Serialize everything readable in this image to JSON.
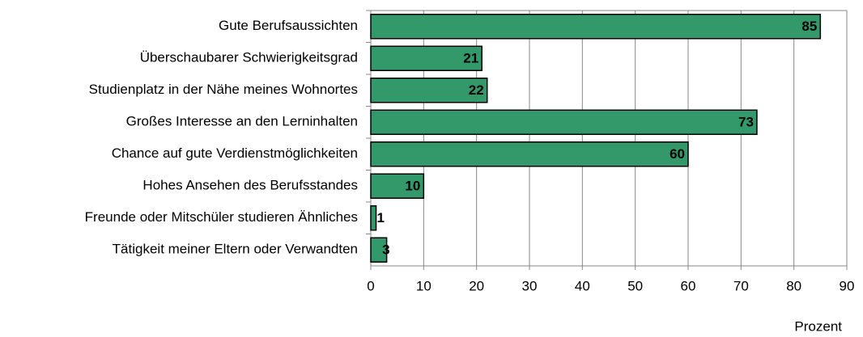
{
  "chart_data": {
    "type": "barh",
    "categories": [
      "Gute Berufsaussichten",
      "Überschaubarer Schwierigkeitsgrad",
      "Studienplatz in der Nähe meines Wohnortes",
      "Großes Interesse an den Lerninhalten",
      "Chance auf gute Verdienstmöglichkeiten",
      "Hohes Ansehen des Berufsstandes",
      "Freunde oder Mitschüler studieren Ähnliches",
      "Tätigkeit meiner Eltern oder Verwandten"
    ],
    "values": [
      85,
      21,
      22,
      73,
      60,
      10,
      1,
      3
    ],
    "color": "#33996a",
    "x_label": "Prozent",
    "xlim": [
      0,
      90
    ],
    "xticks": [
      0,
      10,
      20,
      30,
      40,
      50,
      60,
      70,
      80,
      90
    ],
    "grid": true
  }
}
